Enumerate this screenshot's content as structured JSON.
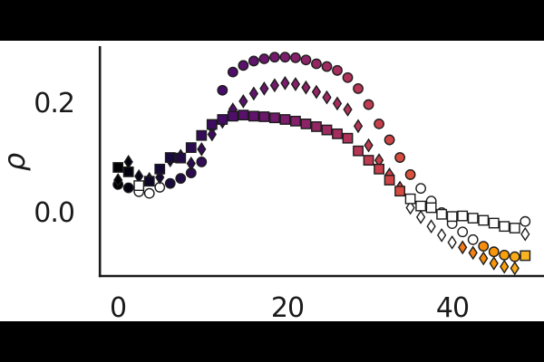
{
  "figure": {
    "background": "#000000",
    "panel_background": "#ffffff",
    "spine_color": "#1a1a1a",
    "marker_edge_color": "#1c1c1c",
    "open_marker_fill": "#ffffff"
  },
  "chart_data": {
    "type": "scatter",
    "title": "",
    "xlabel": "",
    "ylabel": "ρ",
    "xtick_labels": [
      "0",
      "20",
      "40"
    ],
    "xticks": [
      0,
      20,
      40
    ],
    "ytick_labels": [
      "0.0",
      "0.2"
    ],
    "yticks": [
      0.0,
      0.2
    ],
    "xlim": [
      -2.3,
      51.0
    ],
    "ylim": [
      -0.112,
      0.305
    ],
    "grid": false,
    "legend": "none",
    "point_format": "[x, rho, fill] ; fill 'open' = white-filled marker, otherwise hex of inferno-like colormap encoding x",
    "series": [
      {
        "name": "circles",
        "marker": "circle",
        "points": [
          [
            0,
            0.054,
            "#000004"
          ],
          [
            1.25,
            0.048,
            "#050210"
          ],
          [
            2.5,
            0.041,
            "open"
          ],
          [
            3.75,
            0.038,
            "open"
          ],
          [
            5,
            0.049,
            "open"
          ],
          [
            6.25,
            0.056,
            "#1a0b3e"
          ],
          [
            7.5,
            0.065,
            "#220c47"
          ],
          [
            8.75,
            0.075,
            "#2c0c50"
          ],
          [
            10,
            0.095,
            "#350c58"
          ],
          [
            11.25,
            0.16,
            "#3e0c60"
          ],
          [
            12.5,
            0.225,
            "#470c68"
          ],
          [
            13.75,
            0.258,
            "#500e6b"
          ],
          [
            15,
            0.27,
            "#59116b"
          ],
          [
            16.25,
            0.278,
            "#61146c"
          ],
          [
            17.5,
            0.282,
            "#6a176c"
          ],
          [
            18.75,
            0.285,
            "#731a6c"
          ],
          [
            20,
            0.285,
            "#7c1d6c"
          ],
          [
            21.25,
            0.284,
            "#842069"
          ],
          [
            22.5,
            0.28,
            "#8d2367"
          ],
          [
            23.75,
            0.273,
            "#952664"
          ],
          [
            25,
            0.268,
            "#9e2a62"
          ],
          [
            26.25,
            0.261,
            "#a72d5f"
          ],
          [
            27.5,
            0.248,
            "#af325a"
          ],
          [
            28.75,
            0.228,
            "#b73655"
          ],
          [
            30,
            0.199,
            "#bf3b50"
          ],
          [
            31.25,
            0.164,
            "#c73f4b"
          ],
          [
            32.5,
            0.135,
            "#cf4446"
          ],
          [
            33.75,
            0.103,
            "#d54b40"
          ],
          [
            35,
            0.072,
            "#da5239"
          ],
          [
            36.25,
            0.047,
            "open"
          ],
          [
            37.5,
            0.024,
            "open"
          ],
          [
            38.75,
            0.003,
            "open"
          ],
          [
            40,
            -0.017,
            "open"
          ],
          [
            41.25,
            -0.032,
            "open"
          ],
          [
            42.5,
            -0.046,
            "open"
          ],
          [
            43.75,
            -0.058,
            "#f78d0e"
          ],
          [
            45,
            -0.068,
            "#fa9609"
          ],
          [
            46.25,
            -0.074,
            "#faa00c"
          ],
          [
            47.5,
            -0.077,
            "#faab17"
          ],
          [
            48.75,
            -0.013,
            "open"
          ]
        ]
      },
      {
        "name": "diamonds",
        "marker": "diamond",
        "points": [
          [
            0,
            0.062,
            "#000004"
          ],
          [
            1.25,
            0.095,
            "#050210"
          ],
          [
            2.5,
            0.069,
            "#0a051b"
          ],
          [
            3.75,
            0.064,
            "#100727"
          ],
          [
            5,
            0.067,
            "#150933"
          ],
          [
            6.25,
            0.098,
            "#1a0b3e"
          ],
          [
            7.5,
            0.106,
            "#220c47"
          ],
          [
            8.75,
            0.092,
            "#2c0c50"
          ],
          [
            10,
            0.118,
            "#350c58"
          ],
          [
            11.25,
            0.145,
            "#3e0c60"
          ],
          [
            12.5,
            0.168,
            "#470c68"
          ],
          [
            13.75,
            0.19,
            "#500e6b"
          ],
          [
            15,
            0.205,
            "#59116b"
          ],
          [
            16.25,
            0.219,
            "#61146c"
          ],
          [
            17.5,
            0.228,
            "#6a176c"
          ],
          [
            18.75,
            0.234,
            "#731a6c"
          ],
          [
            20,
            0.238,
            "#7c1d6c"
          ],
          [
            21.25,
            0.236,
            "#842069"
          ],
          [
            22.5,
            0.23,
            "#8d2367"
          ],
          [
            23.75,
            0.222,
            "#952664"
          ],
          [
            25,
            0.212,
            "#9e2a62"
          ],
          [
            26.25,
            0.201,
            "#a72d5f"
          ],
          [
            27.5,
            0.19,
            "#af325a"
          ],
          [
            28.75,
            0.16,
            "#b73655"
          ],
          [
            30,
            0.125,
            "#bf3b50"
          ],
          [
            31.25,
            0.098,
            "#c73f4b"
          ],
          [
            32.5,
            0.072,
            "#cf4446"
          ],
          [
            33.75,
            0.048,
            "#d54b40"
          ],
          [
            35,
            0.012,
            "open"
          ],
          [
            36.25,
            -0.005,
            "open"
          ],
          [
            37.5,
            -0.022,
            "open"
          ],
          [
            38.75,
            -0.038,
            "open"
          ],
          [
            40,
            -0.051,
            "open"
          ],
          [
            41.25,
            -0.06,
            "#f27a1a"
          ],
          [
            42.5,
            -0.07,
            "#f58314"
          ],
          [
            43.75,
            -0.08,
            "#f78d0e"
          ],
          [
            45,
            -0.089,
            "#fa9609"
          ],
          [
            46.25,
            -0.095,
            "#faa00c"
          ],
          [
            47.5,
            -0.098,
            "#faab17"
          ],
          [
            48.75,
            -0.036,
            "open"
          ]
        ]
      },
      {
        "name": "squares",
        "marker": "square",
        "points": [
          [
            0,
            0.085,
            "#000004"
          ],
          [
            1.25,
            0.077,
            "#050210"
          ],
          [
            2.5,
            0.052,
            "open"
          ],
          [
            3.75,
            0.06,
            "#100727"
          ],
          [
            5,
            0.082,
            "#150933"
          ],
          [
            6.25,
            0.103,
            "#1a0b3e"
          ],
          [
            7.5,
            0.102,
            "#220c47"
          ],
          [
            8.75,
            0.121,
            "#2c0c50"
          ],
          [
            10,
            0.143,
            "#350c58"
          ],
          [
            11.25,
            0.163,
            "#3e0c60"
          ],
          [
            12.5,
            0.172,
            "#470c68"
          ],
          [
            13.75,
            0.178,
            "#500e6b"
          ],
          [
            15,
            0.18,
            "#59116b"
          ],
          [
            16.25,
            0.178,
            "#61146c"
          ],
          [
            17.5,
            0.177,
            "#6a176c"
          ],
          [
            18.75,
            0.175,
            "#731a6c"
          ],
          [
            20,
            0.172,
            "#7c1d6c"
          ],
          [
            21.25,
            0.169,
            "#842069"
          ],
          [
            22.5,
            0.164,
            "#8d2367"
          ],
          [
            23.75,
            0.159,
            "#952664"
          ],
          [
            25,
            0.153,
            "#9e2a62"
          ],
          [
            26.25,
            0.146,
            "#a72d5f"
          ],
          [
            27.5,
            0.138,
            "#af325a"
          ],
          [
            28.75,
            0.115,
            "#b73655"
          ],
          [
            30,
            0.098,
            "#bf3b50"
          ],
          [
            31.25,
            0.082,
            "#c73f4b"
          ],
          [
            32.5,
            0.062,
            "#cf4446"
          ],
          [
            33.75,
            0.042,
            "#d54b40"
          ],
          [
            35,
            0.028,
            "open"
          ],
          [
            36.25,
            0.015,
            "open"
          ],
          [
            37.5,
            0.012,
            "open"
          ],
          [
            38.75,
            0.0,
            "open"
          ],
          [
            40,
            -0.004,
            "open"
          ],
          [
            41.25,
            -0.003,
            "open"
          ],
          [
            42.5,
            -0.007,
            "open"
          ],
          [
            43.75,
            -0.011,
            "open"
          ],
          [
            45,
            -0.016,
            "open"
          ],
          [
            46.25,
            -0.022,
            "open"
          ],
          [
            47.5,
            -0.025,
            "open"
          ],
          [
            48.75,
            -0.075,
            "#f9b521"
          ]
        ]
      }
    ]
  }
}
